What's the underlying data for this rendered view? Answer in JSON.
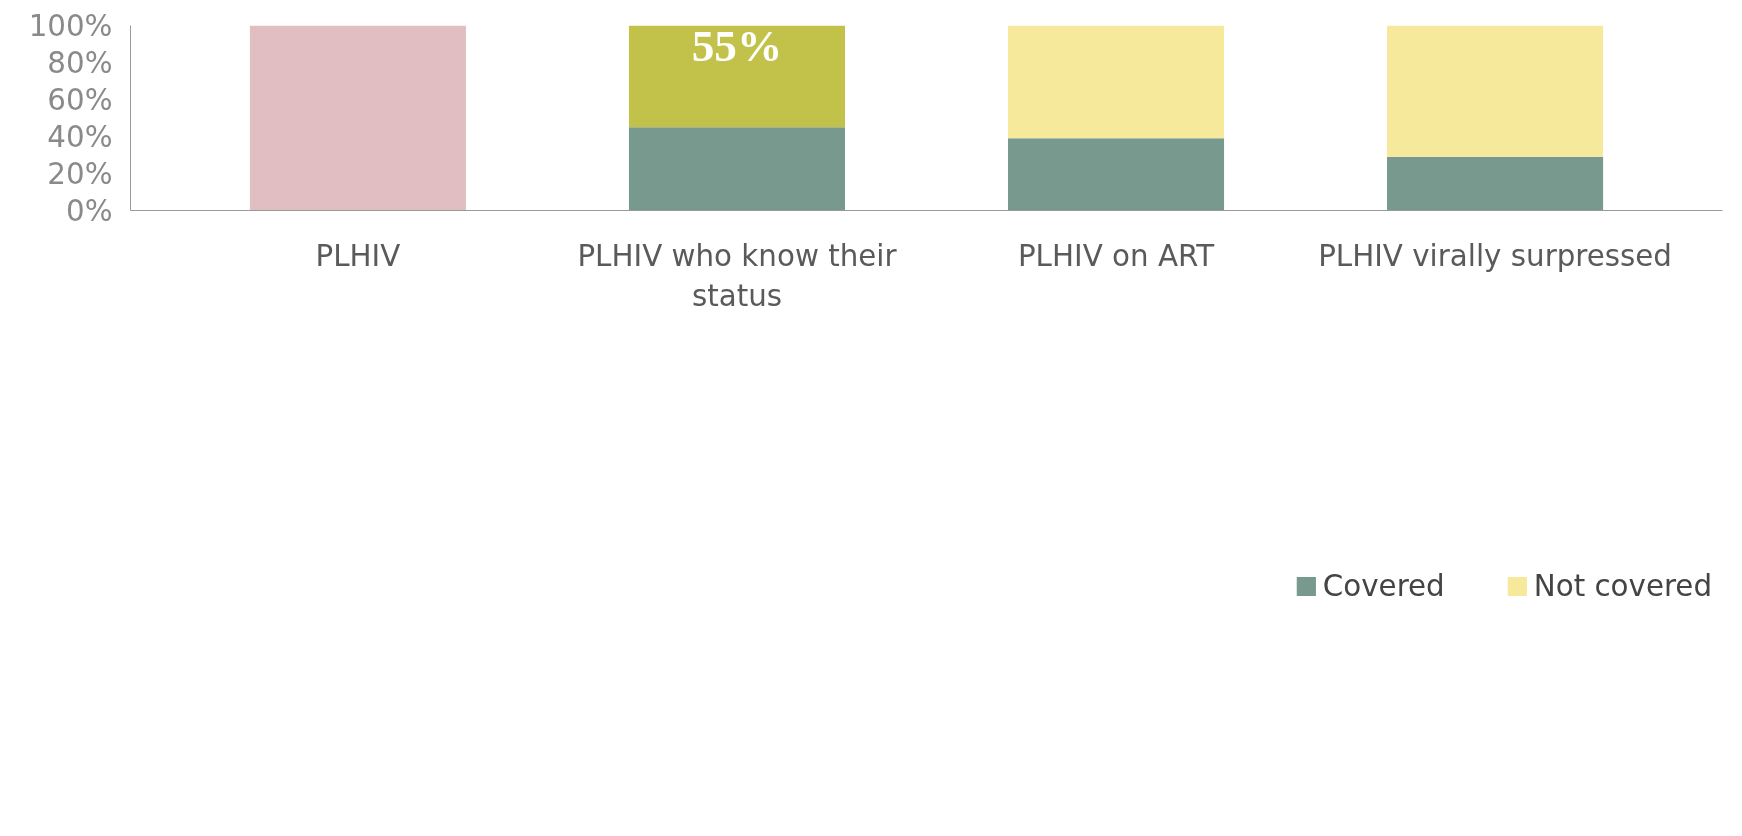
{
  "chart_data": {
    "type": "bar",
    "stacked": true,
    "categories": [
      "PLHIV",
      "PLHIV who know their status",
      "PLHIV on ART",
      "PLHIV virally surpressed"
    ],
    "series": [
      {
        "name": "Covered",
        "color": "#789a8e",
        "colors": [
          "#e0bec2",
          "#789a8e",
          "#789a8e",
          "#789a8e"
        ],
        "values": [
          100,
          45,
          39,
          29
        ]
      },
      {
        "name": "Not covered",
        "color": "#f7e99c",
        "colors": [
          "#f7e99c",
          "#c2c24a",
          "#f7e99c",
          "#f7e99c"
        ],
        "values": [
          null,
          55,
          61,
          71
        ],
        "value_labels": [
          null,
          "55%",
          null,
          null
        ]
      }
    ],
    "ylim": [
      0,
      100
    ],
    "yticks": [
      {
        "value": 0,
        "label": "0%"
      },
      {
        "value": 20,
        "label": "20%"
      },
      {
        "value": 40,
        "label": "40%"
      },
      {
        "value": 60,
        "label": "60%"
      },
      {
        "value": 80,
        "label": "80%"
      },
      {
        "value": 100,
        "label": "100%"
      }
    ],
    "grid": false,
    "legend": "bottom"
  }
}
